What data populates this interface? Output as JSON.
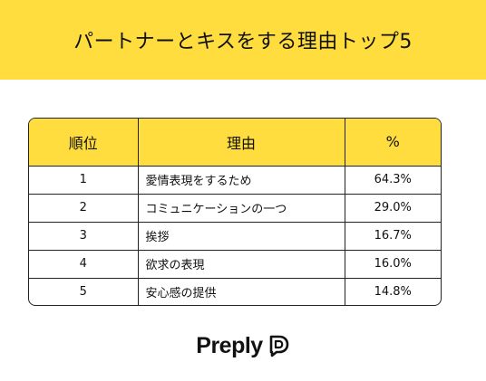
{
  "banner": {
    "title": "パートナーとキスをする理由トップ5"
  },
  "chart_data": {
    "type": "table",
    "title": "パートナーとキスをする理由トップ5",
    "columns": [
      "順位",
      "理由",
      "%"
    ],
    "rows": [
      {
        "rank": "1",
        "reason": "愛情表現をするため",
        "percent": "64.3%"
      },
      {
        "rank": "2",
        "reason": "コミュニケーションの一つ",
        "percent": "29.0%"
      },
      {
        "rank": "3",
        "reason": "挨拶",
        "percent": "16.7%"
      },
      {
        "rank": "4",
        "reason": "欲求の表現",
        "percent": "16.0%"
      },
      {
        "rank": "5",
        "reason": "安心感の提供",
        "percent": "14.8%"
      }
    ]
  },
  "brand": {
    "name": "Preply",
    "logo_icon": "preply-logo-icon"
  },
  "colors": {
    "accent": "#FFDD3F",
    "text": "#111111",
    "border": "#222222"
  }
}
